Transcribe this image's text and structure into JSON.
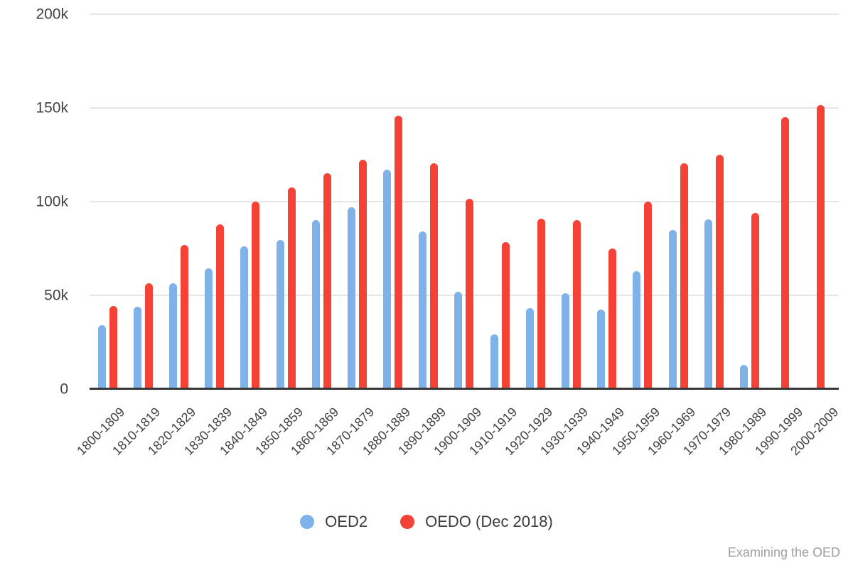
{
  "watermark": {
    "text": "Examining the OED",
    "color": "#9e9e9e"
  },
  "colors": {
    "oed2_blue": "#7eb2e8",
    "oedo_red": "#f44336",
    "gridline": "#e6e6e6",
    "axis_line": "#383838",
    "axis_text": "#424242",
    "legend_text": "#3c3c3c"
  },
  "chart_data": {
    "type": "bar",
    "title": "",
    "xlabel": "",
    "ylabel": "",
    "unit": "thousands",
    "grid": true,
    "legend_position": "bottom",
    "ylim_thousands": [
      0,
      200
    ],
    "y_axis": {
      "ticks": [
        {
          "label": "0",
          "value": 0
        },
        {
          "label": "50k",
          "value": 50
        },
        {
          "label": "100k",
          "value": 100
        },
        {
          "label": "150k",
          "value": 150
        },
        {
          "label": "200k",
          "value": 200
        }
      ]
    },
    "categories": [
      "1800-1809",
      "1810-1819",
      "1820-1829",
      "1830-1839",
      "1840-1849",
      "1850-1859",
      "1860-1869",
      "1870-1879",
      "1880-1889",
      "1890-1899",
      "1900-1909",
      "1910-1919",
      "1920-1929",
      "1930-1939",
      "1940-1949",
      "1950-1959",
      "1960-1969",
      "1970-1979",
      "1980-1989",
      "1990-1999",
      "2000-2009"
    ],
    "series": [
      {
        "name": "OED2",
        "color": "#7eb2e8",
        "values_thousands": [
          34,
          44,
          56.5,
          64.5,
          76,
          79.5,
          90,
          97,
          117,
          84,
          52,
          29,
          43,
          51,
          42.5,
          63,
          85,
          90.5,
          13,
          0,
          0
        ]
      },
      {
        "name": "OEDO (Dec 2018)",
        "color": "#f44336",
        "values_thousands": [
          44.5,
          56.5,
          77,
          88,
          100,
          107.5,
          115,
          122.5,
          146,
          120.5,
          101.5,
          78.5,
          91,
          90,
          75,
          100,
          120.5,
          125,
          94,
          145,
          151.5
        ]
      }
    ]
  }
}
